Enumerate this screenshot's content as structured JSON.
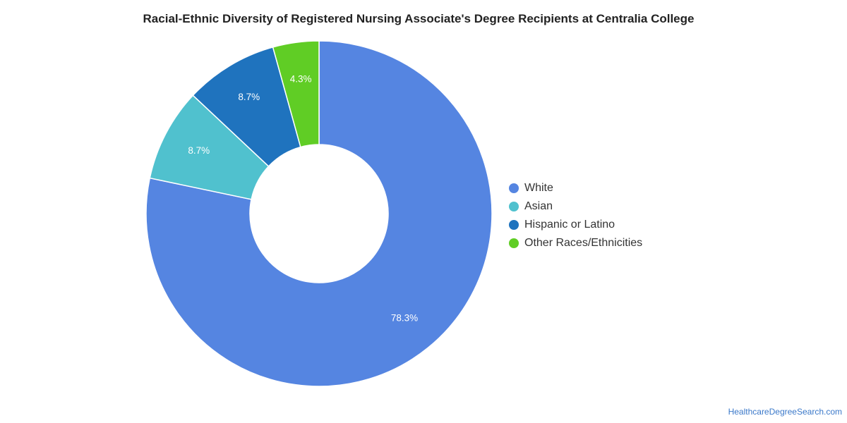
{
  "chart_data": {
    "type": "pie",
    "title": "Racial-Ethnic Diversity of Registered Nursing Associate's Degree Recipients at Centralia College",
    "categories": [
      "White",
      "Asian",
      "Hispanic or Latino",
      "Other Races/Ethnicities"
    ],
    "values": [
      78.3,
      8.7,
      8.7,
      4.3
    ],
    "value_labels": [
      "78.3%",
      "8.7%",
      "8.7%",
      "4.3%"
    ],
    "colors": [
      "#5585e1",
      "#50c1ce",
      "#1f73be",
      "#60cd25"
    ],
    "donut": true,
    "legend_position": "right"
  },
  "credit": "HealthcareDegreeSearch.com"
}
